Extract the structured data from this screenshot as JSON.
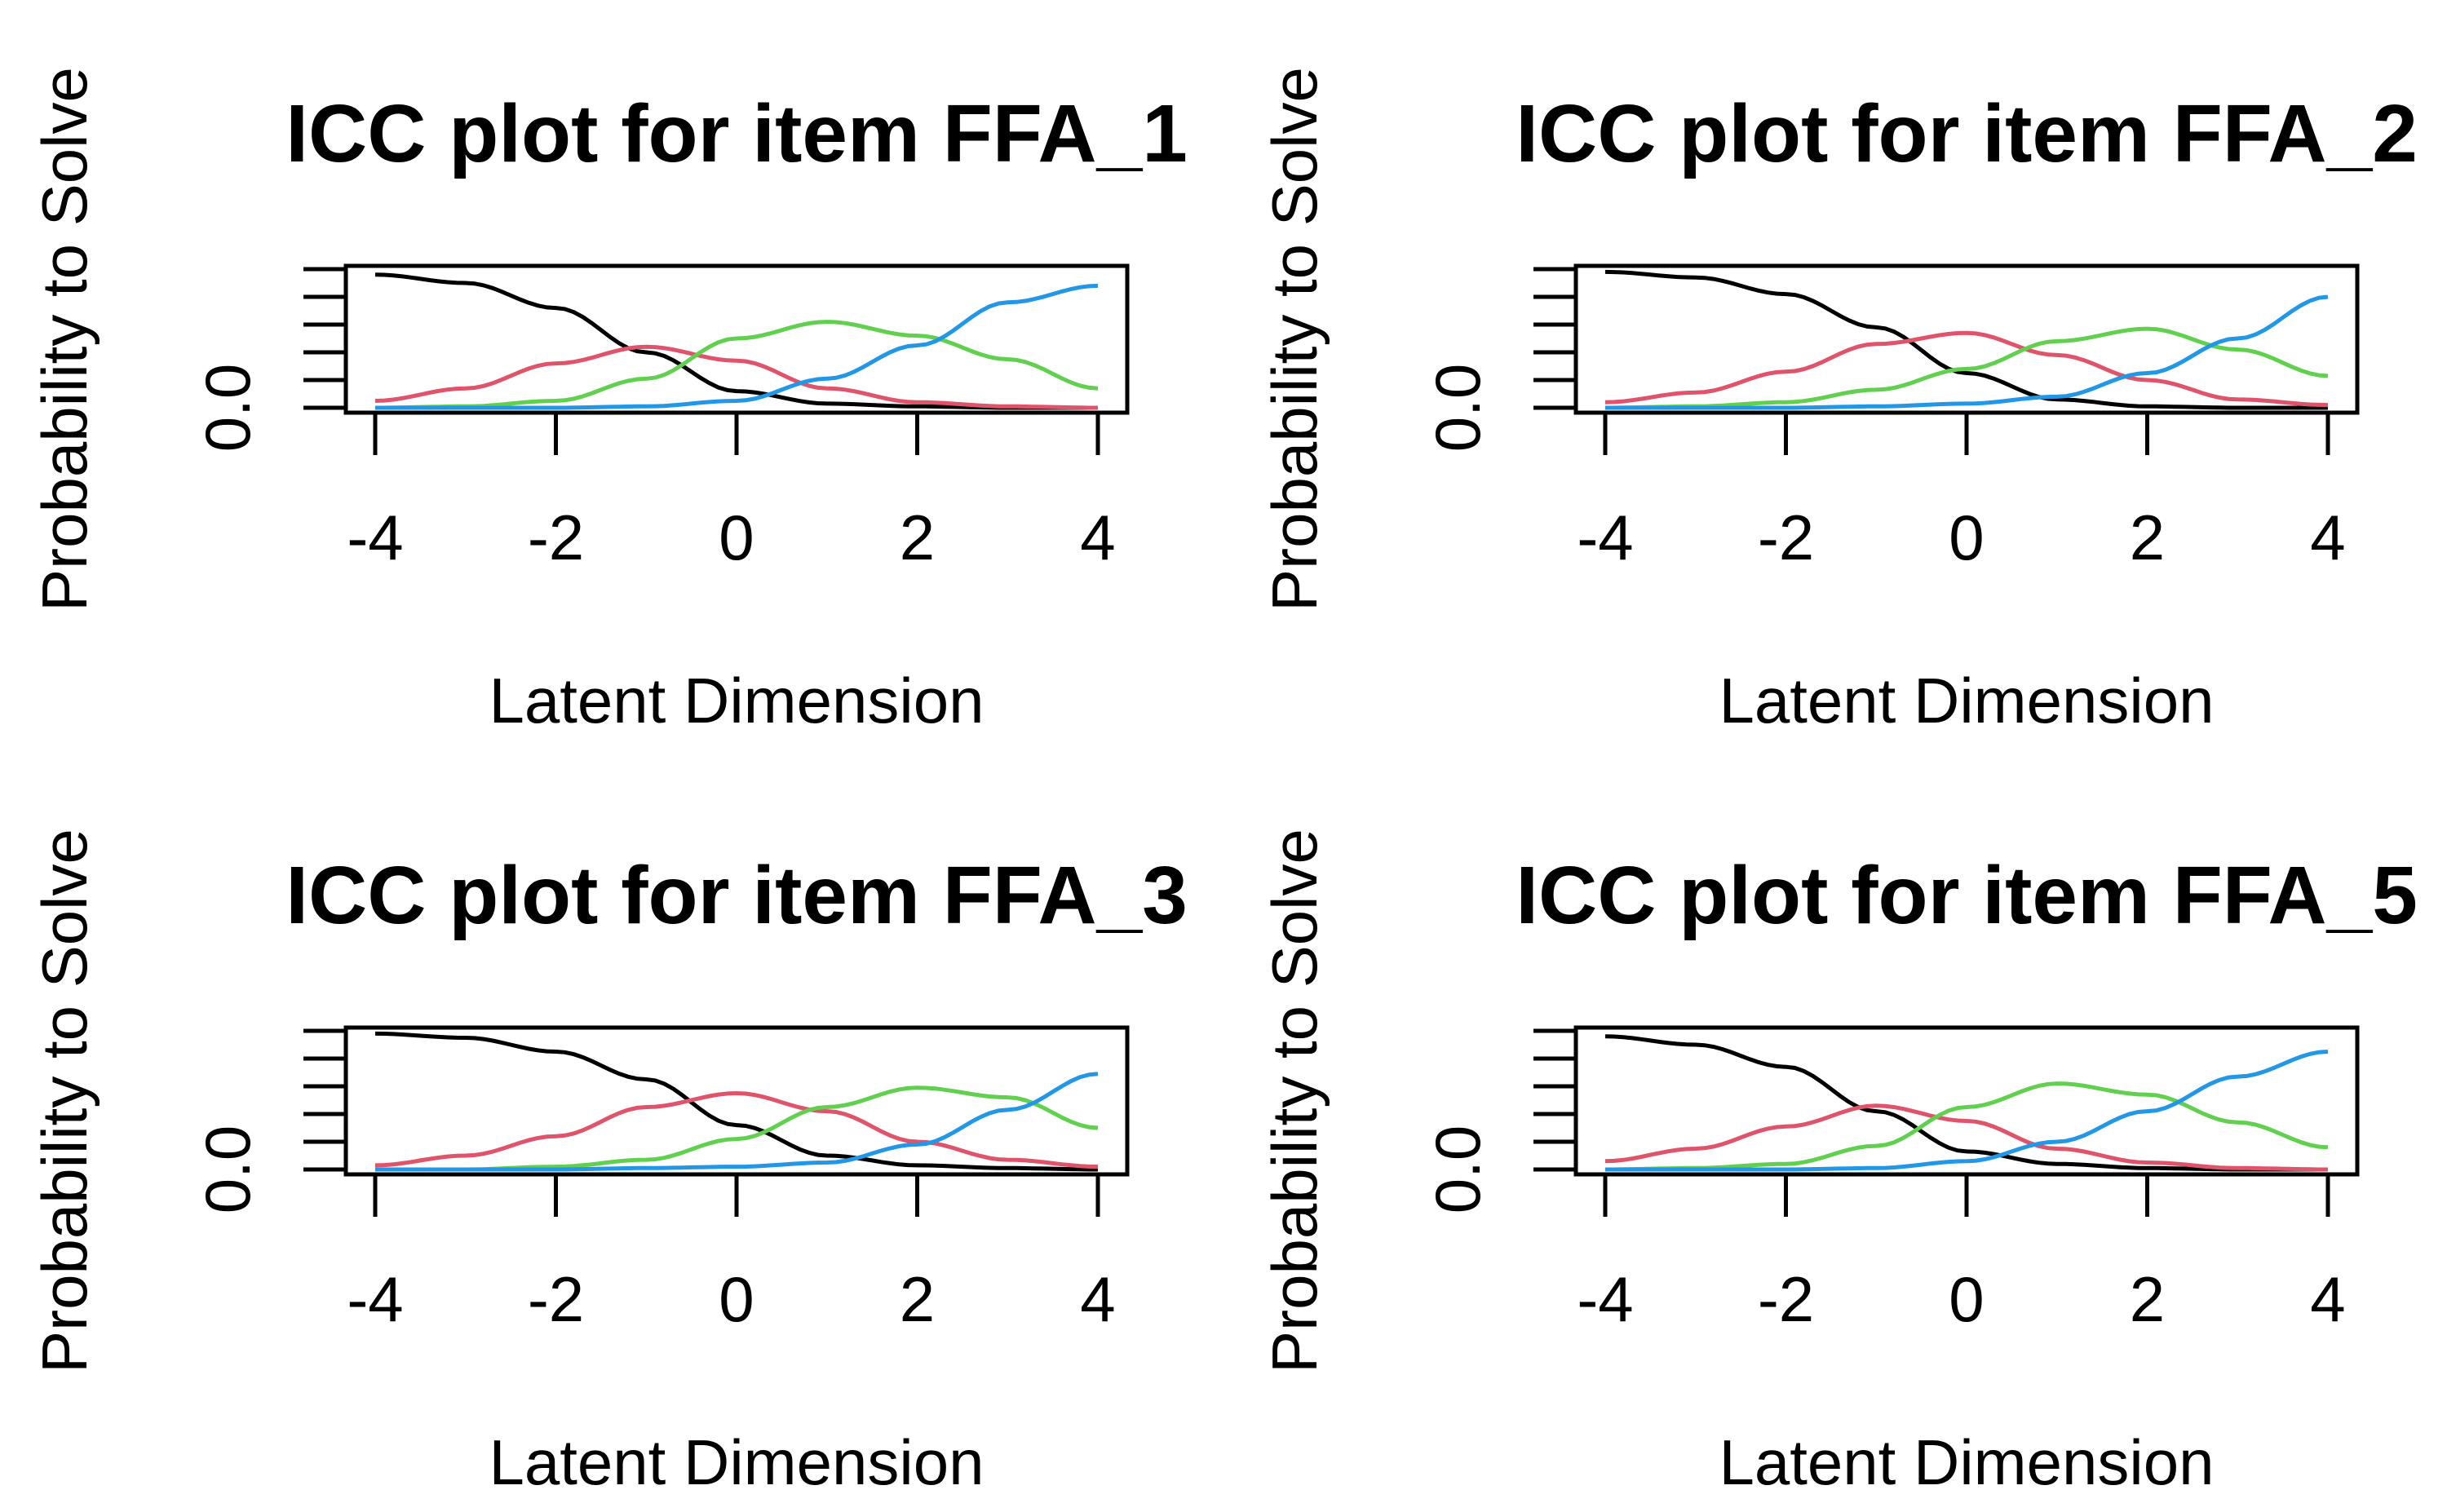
{
  "colors": {
    "category_0": "#000000",
    "category_1": "#DF536B",
    "category_2": "#61D04F",
    "category_3": "#2297E6"
  },
  "chart_data": [
    {
      "type": "line",
      "title": "ICC plot for item FFA_1",
      "xlabel": "Latent Dimension",
      "ylabel": "Probability to Solve",
      "x_ticks": [
        "-4",
        "-2",
        "0",
        "2",
        "4"
      ],
      "y_tick_labels": [
        "0.0"
      ],
      "xlim": [
        -4,
        4
      ],
      "ylim": [
        0,
        1
      ],
      "x": [
        -4,
        -3,
        -2,
        -1,
        0,
        1,
        2,
        3,
        4
      ],
      "series": [
        {
          "values": [
            0.96,
            0.9,
            0.72,
            0.4,
            0.12,
            0.03,
            0.01,
            0.0,
            0.0
          ]
        },
        {
          "values": [
            0.05,
            0.14,
            0.32,
            0.44,
            0.34,
            0.14,
            0.04,
            0.01,
            0.0
          ]
        },
        {
          "values": [
            0.0,
            0.01,
            0.05,
            0.21,
            0.5,
            0.62,
            0.52,
            0.35,
            0.14
          ]
        },
        {
          "values": [
            0.0,
            0.0,
            0.0,
            0.01,
            0.05,
            0.21,
            0.45,
            0.76,
            0.88
          ]
        }
      ]
    },
    {
      "type": "line",
      "title": "ICC plot for item FFA_2",
      "xlabel": "Latent Dimension",
      "ylabel": "Probability to Solve",
      "x_ticks": [
        "-4",
        "-2",
        "0",
        "2",
        "4"
      ],
      "y_tick_labels": [
        "0.0"
      ],
      "xlim": [
        -4,
        4
      ],
      "ylim": [
        0,
        1
      ],
      "x": [
        -4,
        -3,
        -2,
        -1,
        0,
        1,
        2,
        3,
        4
      ],
      "series": [
        {
          "values": [
            0.98,
            0.94,
            0.82,
            0.58,
            0.25,
            0.06,
            0.01,
            0.0,
            0.0
          ]
        },
        {
          "values": [
            0.04,
            0.11,
            0.26,
            0.46,
            0.54,
            0.38,
            0.2,
            0.06,
            0.02
          ]
        },
        {
          "values": [
            0.0,
            0.01,
            0.04,
            0.13,
            0.28,
            0.48,
            0.57,
            0.42,
            0.23
          ]
        },
        {
          "values": [
            0.0,
            0.0,
            0.0,
            0.01,
            0.03,
            0.08,
            0.25,
            0.5,
            0.8
          ]
        }
      ]
    },
    {
      "type": "line",
      "title": "ICC plot for item FFA_3",
      "xlabel": "Latent Dimension",
      "ylabel": "Probability to Solve",
      "x_ticks": [
        "-4",
        "-2",
        "0",
        "2",
        "4"
      ],
      "y_tick_labels": [
        "0.0"
      ],
      "xlim": [
        -4,
        4
      ],
      "ylim": [
        0,
        1
      ],
      "x": [
        -4,
        -3,
        -2,
        -1,
        0,
        1,
        2,
        3,
        4
      ],
      "series": [
        {
          "values": [
            0.98,
            0.95,
            0.85,
            0.65,
            0.32,
            0.1,
            0.03,
            0.01,
            0.0
          ]
        },
        {
          "values": [
            0.03,
            0.1,
            0.24,
            0.45,
            0.55,
            0.42,
            0.2,
            0.07,
            0.02
          ]
        },
        {
          "values": [
            0.0,
            0.0,
            0.02,
            0.07,
            0.22,
            0.45,
            0.59,
            0.52,
            0.3
          ]
        },
        {
          "values": [
            0.0,
            0.0,
            0.0,
            0.01,
            0.02,
            0.05,
            0.18,
            0.43,
            0.69
          ]
        }
      ]
    },
    {
      "type": "line",
      "title": "ICC plot for item FFA_5",
      "xlabel": "Latent Dimension",
      "ylabel": "Probability to Solve",
      "x_ticks": [
        "-4",
        "-2",
        "0",
        "2",
        "4"
      ],
      "y_tick_labels": [
        "0.0"
      ],
      "xlim": [
        -4,
        4
      ],
      "ylim": [
        0,
        1
      ],
      "x": [
        -4,
        -3,
        -2,
        -1,
        0,
        1,
        2,
        3,
        4
      ],
      "series": [
        {
          "values": [
            0.96,
            0.9,
            0.74,
            0.42,
            0.13,
            0.04,
            0.01,
            0.0,
            0.0
          ]
        },
        {
          "values": [
            0.06,
            0.15,
            0.31,
            0.46,
            0.35,
            0.15,
            0.05,
            0.01,
            0.0
          ]
        },
        {
          "values": [
            0.0,
            0.01,
            0.04,
            0.17,
            0.45,
            0.62,
            0.54,
            0.34,
            0.16
          ]
        },
        {
          "values": [
            0.0,
            0.0,
            0.0,
            0.01,
            0.06,
            0.2,
            0.42,
            0.67,
            0.85
          ]
        }
      ]
    }
  ]
}
